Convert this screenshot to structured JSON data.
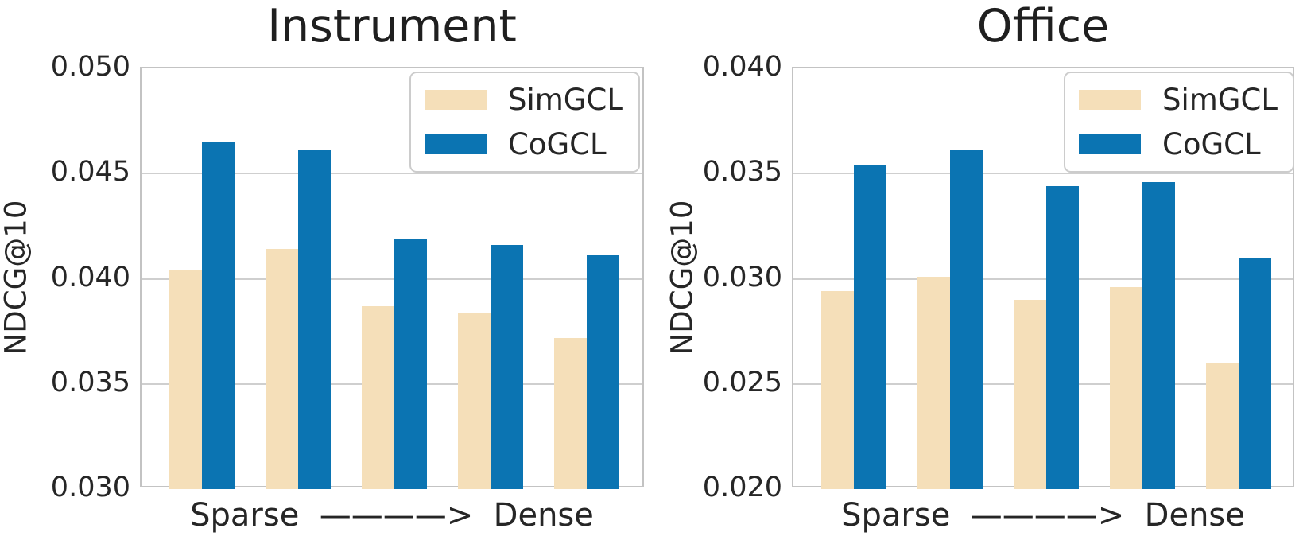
{
  "colors": {
    "background": "#ffffff",
    "text": "#262626",
    "grid": "#cfcfcf",
    "spine": "#c3c3c3",
    "simgcl": "#F5DFB9",
    "cogcl": "#0B74B2"
  },
  "chart_data": [
    {
      "type": "bar",
      "title": "Instrument",
      "ylabel": "NDCG@10",
      "xlabel": "Sparse  ————>  Dense",
      "ylim": [
        0.03,
        0.05
      ],
      "yticks": [
        0.05,
        0.045,
        0.04,
        0.035,
        0.03
      ],
      "ytick_labels": [
        "0.050",
        "0.045",
        "0.040",
        "0.035",
        "0.030"
      ],
      "grid": true,
      "legend_position": "upper right",
      "series": [
        {
          "name": "SimGCL",
          "color": "#F5DFB9",
          "values": [
            0.0404,
            0.0414,
            0.0387,
            0.0384,
            0.0372
          ]
        },
        {
          "name": "CoGCL",
          "color": "#0B74B2",
          "values": [
            0.0465,
            0.0461,
            0.0419,
            0.0416,
            0.0411
          ]
        }
      ]
    },
    {
      "type": "bar",
      "title": "Office",
      "ylabel": "NDCG@10",
      "xlabel": "Sparse  ————>  Dense",
      "ylim": [
        0.02,
        0.04
      ],
      "yticks": [
        0.04,
        0.035,
        0.03,
        0.025,
        0.02
      ],
      "ytick_labels": [
        "0.040",
        "0.035",
        "0.030",
        "0.025",
        "0.020"
      ],
      "grid": true,
      "legend_position": "upper right",
      "series": [
        {
          "name": "SimGCL",
          "color": "#F5DFB9",
          "values": [
            0.0294,
            0.0301,
            0.029,
            0.0296,
            0.026
          ]
        },
        {
          "name": "CoGCL",
          "color": "#0B74B2",
          "values": [
            0.0354,
            0.0361,
            0.0344,
            0.0346,
            0.031
          ]
        }
      ]
    }
  ]
}
